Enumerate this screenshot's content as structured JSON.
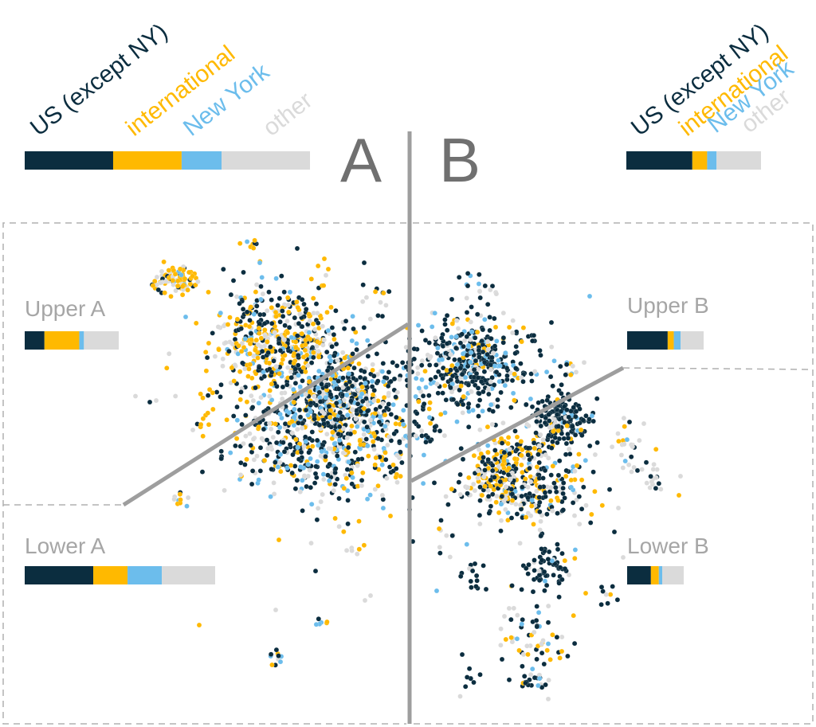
{
  "colors": {
    "us": "#0b2d3f",
    "international": "#ffb900",
    "newyork": "#6cbdec",
    "other": "#dadada",
    "divider": "#9e9e9e",
    "dashed": "#b0b0b0",
    "label": "#a6a6a6",
    "bigletter": "#707070"
  },
  "chart_data": {
    "type": "scatter",
    "legend_categories": [
      "US (except NY)",
      "international",
      "New York",
      "other"
    ],
    "groups": [
      {
        "id": "A",
        "label": "A",
        "shares": [
          0.31,
          0.24,
          0.14,
          0.31
        ]
      },
      {
        "id": "B",
        "label": "B",
        "shares": [
          0.49,
          0.11,
          0.07,
          0.33
        ]
      },
      {
        "id": "upperA",
        "label": "Upper A",
        "shares": [
          0.21,
          0.37,
          0.05,
          0.37
        ]
      },
      {
        "id": "lowerA",
        "label": "Lower A",
        "shares": [
          0.36,
          0.18,
          0.18,
          0.28
        ]
      },
      {
        "id": "upperB",
        "label": "Upper B",
        "shares": [
          0.53,
          0.08,
          0.09,
          0.3
        ]
      },
      {
        "id": "lowerB",
        "label": "Lower B",
        "shares": [
          0.42,
          0.14,
          0.06,
          0.38
        ]
      }
    ]
  }
}
